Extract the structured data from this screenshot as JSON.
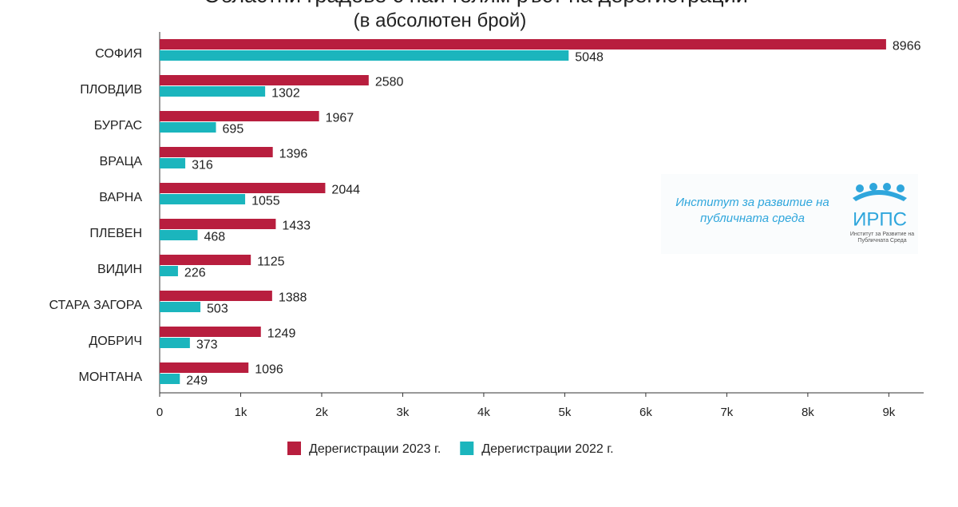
{
  "chart_data": {
    "type": "grouped-horizontal-bar",
    "title": "Областни градове с най-голям ръст на дерегистрации",
    "subtitle": "(в абсолютен брой)",
    "categories": [
      "СОФИЯ",
      "ПЛОВДИВ",
      "БУРГАС",
      "ВРАЦА",
      "ВАРНА",
      "ПЛЕВЕН",
      "ВИДИН",
      "СТАРА ЗАГОРА",
      "ДОБРИЧ",
      "МОНТАНА"
    ],
    "series": [
      {
        "name": "Дерегистрации 2023 г.",
        "color": "#b81e3e",
        "values": [
          8966,
          2580,
          1967,
          1396,
          2044,
          1433,
          1125,
          1388,
          1249,
          1096
        ]
      },
      {
        "name": "Дерегистрации 2022 г.",
        "color": "#1bb5bd",
        "values": [
          5048,
          1302,
          695,
          316,
          1055,
          468,
          226,
          503,
          373,
          249
        ]
      }
    ],
    "xlim": [
      0,
      9430
    ],
    "xticks": [
      0,
      {
        "value": 1000,
        "label": "1k"
      },
      {
        "value": 2000,
        "label": "2k"
      },
      {
        "value": 3000,
        "label": "3k"
      },
      {
        "value": 4000,
        "label": "4k"
      },
      {
        "value": 5000,
        "label": "5k"
      },
      {
        "value": 6000,
        "label": "6k"
      },
      {
        "value": 7000,
        "label": "7k"
      },
      {
        "value": 8000,
        "label": "8k"
      },
      {
        "value": 9000,
        "label": "9k"
      }
    ],
    "legend": "bottom",
    "logo": {
      "text": "Институт за развитие на публичната среда",
      "abbr": "ИРПС",
      "small": "Институт за Развитие на Публичната Среда"
    }
  }
}
